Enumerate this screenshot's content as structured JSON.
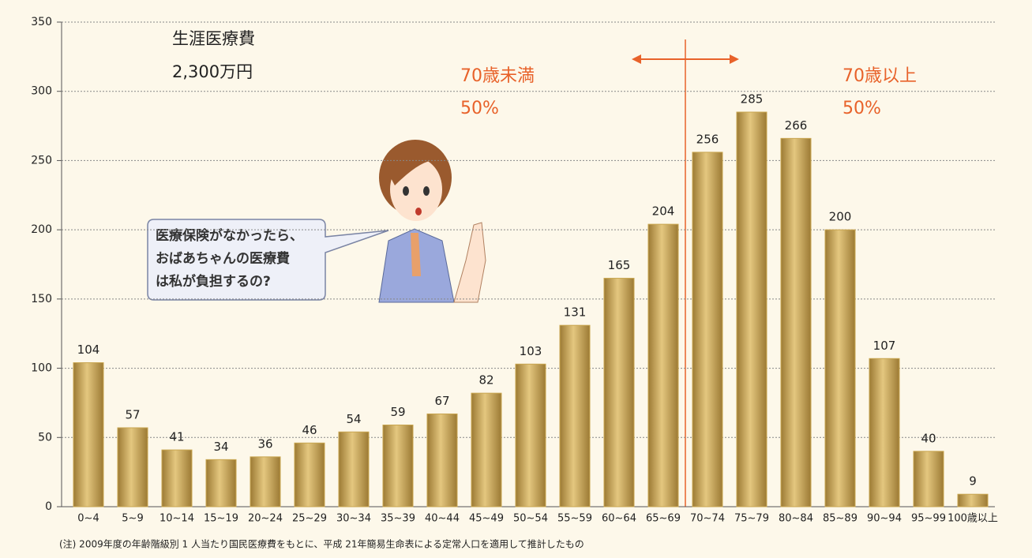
{
  "chart_data": {
    "type": "bar",
    "categories": [
      "0~4",
      "5~9",
      "10~14",
      "15~19",
      "20~24",
      "25~29",
      "30~34",
      "35~39",
      "40~44",
      "45~49",
      "50~54",
      "55~59",
      "60~64",
      "65~69",
      "70~74",
      "75~79",
      "80~84",
      "85~89",
      "90~94",
      "95~99",
      "100歳以上"
    ],
    "values": [
      104,
      57,
      41,
      34,
      36,
      46,
      54,
      59,
      67,
      82,
      103,
      131,
      165,
      204,
      256,
      285,
      266,
      200,
      107,
      40,
      9
    ],
    "color": "#c9a650",
    "ylim": [
      0,
      350
    ],
    "yticks": [
      0,
      50,
      100,
      150,
      200,
      250,
      300,
      350
    ],
    "grid": true,
    "annotations": {
      "lifetime_label": "生涯医療費",
      "lifetime_value": "2,300万円",
      "under70_label": "70歳未満",
      "under70_share": "50%",
      "over70_label": "70歳以上",
      "over70_share": "50%"
    },
    "speech": [
      "医療保険がなかったら、",
      "おばあちゃんの医療費",
      "は私が負担するの?"
    ],
    "note": "(注) 2009年度の年齢階級別 1 人当たり国民医療費をもとに、平成 21年簡易生命表による定常人口を適用して推計したもの"
  }
}
